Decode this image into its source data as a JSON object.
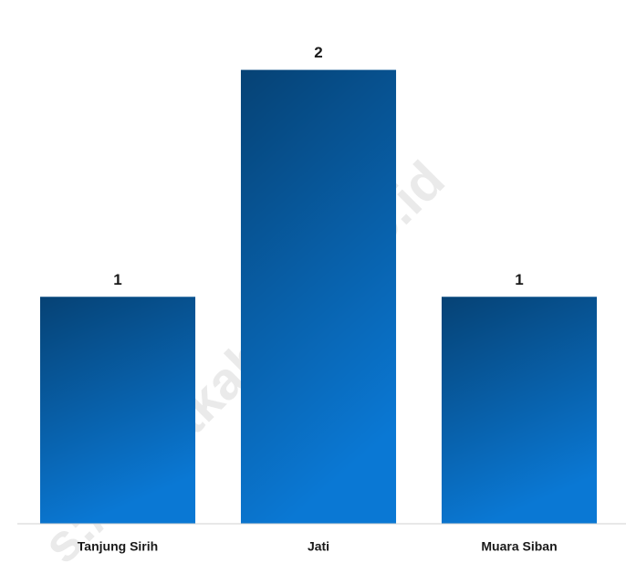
{
  "chart_data": {
    "type": "bar",
    "categories": [
      "Tanjung Sirih",
      "Jati",
      "Muara Siban"
    ],
    "values": [
      1,
      2,
      1
    ],
    "color": "#0a78d4",
    "ylim": [
      0,
      2.3
    ],
    "watermark": "s://lahatkab.bps.go.id"
  }
}
